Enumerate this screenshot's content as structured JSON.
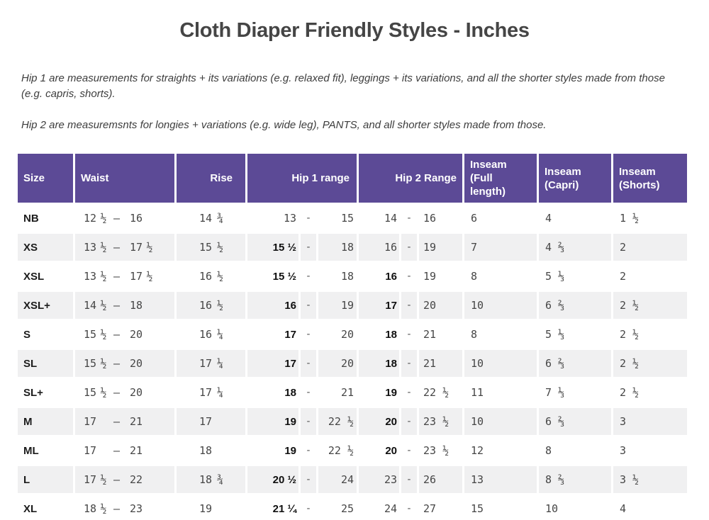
{
  "title": "Cloth Diaper Friendly Styles - Inches",
  "notes": [
    "Hip 1 are measurements for straights + its variations (e.g. relaxed fit), leggings + its variations, and all the shorter styles made from those (e.g. capris, shorts).",
    "Hip 2 are measuremsnts for longies + variations (e.g. wide leg), PANTS, and all shorter styles made from those."
  ],
  "colors": {
    "header_bg": "#5c4a96",
    "header_text": "#ffffff",
    "stripe_row_bg": "#f0f0f1",
    "body_text": "#464646",
    "emphasis_text": "#0f0f0f"
  },
  "table": {
    "headers": [
      "Size",
      "Waist",
      "Rise",
      "Hip 1 range",
      "Hip 2 Range",
      "Inseam (Full length)",
      "Inseam (Capri)",
      "Inseam (Shorts)"
    ],
    "rows": [
      {
        "size": "NB",
        "waist": {
          "min_whole": "12",
          "min_frac": "½",
          "dash": "–",
          "max_whole": "16",
          "max_frac": ""
        },
        "rise": {
          "whole": "14",
          "frac": "¾"
        },
        "hip1": {
          "min": "13",
          "min_emphasis": false,
          "dash": "-",
          "max": "15"
        },
        "hip2": {
          "min": "14",
          "min_emphasis": false,
          "dash": "-",
          "max": "16"
        },
        "inseam_full": "6",
        "inseam_capri": "4",
        "inseam_shorts": "1 ½"
      },
      {
        "size": "XS",
        "waist": {
          "min_whole": "13",
          "min_frac": "½",
          "dash": "–",
          "max_whole": "17",
          "max_frac": "½"
        },
        "rise": {
          "whole": "15",
          "frac": "½"
        },
        "hip1": {
          "min": "15 ½",
          "min_emphasis": true,
          "dash": "-",
          "max": "18"
        },
        "hip2": {
          "min": "16",
          "min_emphasis": false,
          "dash": "-",
          "max": "19"
        },
        "inseam_full": "7",
        "inseam_capri": "4 ⅔",
        "inseam_shorts": "2"
      },
      {
        "size": "XSL",
        "waist": {
          "min_whole": "13",
          "min_frac": "½",
          "dash": "–",
          "max_whole": "17",
          "max_frac": "½"
        },
        "rise": {
          "whole": "16",
          "frac": "½"
        },
        "hip1": {
          "min": "15 ½",
          "min_emphasis": true,
          "dash": "-",
          "max": "18"
        },
        "hip2": {
          "min": "16",
          "min_emphasis": true,
          "dash": "-",
          "max": "19"
        },
        "inseam_full": "8",
        "inseam_capri": "5 ⅓",
        "inseam_shorts": "2"
      },
      {
        "size": "XSL+",
        "waist": {
          "min_whole": "14",
          "min_frac": "½",
          "dash": "–",
          "max_whole": "18",
          "max_frac": ""
        },
        "rise": {
          "whole": "16",
          "frac": "½"
        },
        "hip1": {
          "min": "16",
          "min_emphasis": true,
          "dash": "-",
          "max": "19"
        },
        "hip2": {
          "min": "17",
          "min_emphasis": true,
          "dash": "-",
          "max": "20"
        },
        "inseam_full": "10",
        "inseam_capri": "6 ⅔",
        "inseam_shorts": "2 ½"
      },
      {
        "size": "S",
        "waist": {
          "min_whole": "15",
          "min_frac": "½",
          "dash": "–",
          "max_whole": "20",
          "max_frac": ""
        },
        "rise": {
          "whole": "16",
          "frac": "¼"
        },
        "hip1": {
          "min": "17",
          "min_emphasis": true,
          "dash": "-",
          "max": "20"
        },
        "hip2": {
          "min": "18",
          "min_emphasis": true,
          "dash": "-",
          "max": "21"
        },
        "inseam_full": "8",
        "inseam_capri": "5 ⅓",
        "inseam_shorts": "2 ½"
      },
      {
        "size": "SL",
        "waist": {
          "min_whole": "15",
          "min_frac": "½",
          "dash": "–",
          "max_whole": "20",
          "max_frac": ""
        },
        "rise": {
          "whole": "17",
          "frac": "¼"
        },
        "hip1": {
          "min": "17",
          "min_emphasis": true,
          "dash": "-",
          "max": "20"
        },
        "hip2": {
          "min": "18",
          "min_emphasis": true,
          "dash": "-",
          "max": "21"
        },
        "inseam_full": "10",
        "inseam_capri": "6 ⅔",
        "inseam_shorts": "2 ½"
      },
      {
        "size": "SL+",
        "waist": {
          "min_whole": "15",
          "min_frac": "½",
          "dash": "–",
          "max_whole": "20",
          "max_frac": ""
        },
        "rise": {
          "whole": "17",
          "frac": "¼"
        },
        "hip1": {
          "min": "18",
          "min_emphasis": true,
          "dash": "-",
          "max": "21"
        },
        "hip2": {
          "min": "19",
          "min_emphasis": true,
          "dash": "-",
          "max": "22 ½"
        },
        "inseam_full": "11",
        "inseam_capri": "7 ⅓",
        "inseam_shorts": "2 ½"
      },
      {
        "size": "M",
        "waist": {
          "min_whole": "17",
          "min_frac": "",
          "dash": "–",
          "max_whole": "21",
          "max_frac": ""
        },
        "rise": {
          "whole": "17",
          "frac": ""
        },
        "hip1": {
          "min": "19",
          "min_emphasis": true,
          "dash": "-",
          "max": "22 ½"
        },
        "hip2": {
          "min": "20",
          "min_emphasis": true,
          "dash": "-",
          "max": "23 ½"
        },
        "inseam_full": "10",
        "inseam_capri": "6 ⅔",
        "inseam_shorts": "3"
      },
      {
        "size": "ML",
        "waist": {
          "min_whole": "17",
          "min_frac": "",
          "dash": "–",
          "max_whole": "21",
          "max_frac": ""
        },
        "rise": {
          "whole": "18",
          "frac": ""
        },
        "hip1": {
          "min": "19",
          "min_emphasis": true,
          "dash": "-",
          "max": "22 ½"
        },
        "hip2": {
          "min": "20",
          "min_emphasis": true,
          "dash": "-",
          "max": "23 ½"
        },
        "inseam_full": "12",
        "inseam_capri": "8",
        "inseam_shorts": "3"
      },
      {
        "size": "L",
        "waist": {
          "min_whole": "17",
          "min_frac": "½",
          "dash": "–",
          "max_whole": "22",
          "max_frac": ""
        },
        "rise": {
          "whole": "18",
          "frac": "¾"
        },
        "hip1": {
          "min": "20 ½",
          "min_emphasis": true,
          "dash": "-",
          "max": "24"
        },
        "hip2": {
          "min": "23",
          "min_emphasis": false,
          "dash": "-",
          "max": "26"
        },
        "inseam_full": "13",
        "inseam_capri": "8 ⅔",
        "inseam_shorts": "3 ½"
      },
      {
        "size": "XL",
        "waist": {
          "min_whole": "18",
          "min_frac": "½",
          "dash": "–",
          "max_whole": "23",
          "max_frac": ""
        },
        "rise": {
          "whole": "19",
          "frac": ""
        },
        "hip1": {
          "min": "21 ¼",
          "min_emphasis": true,
          "dash": "-",
          "max": "25"
        },
        "hip2": {
          "min": "24",
          "min_emphasis": false,
          "dash": "-",
          "max": "27"
        },
        "inseam_full": "15",
        "inseam_capri": "10",
        "inseam_shorts": "4"
      }
    ]
  }
}
